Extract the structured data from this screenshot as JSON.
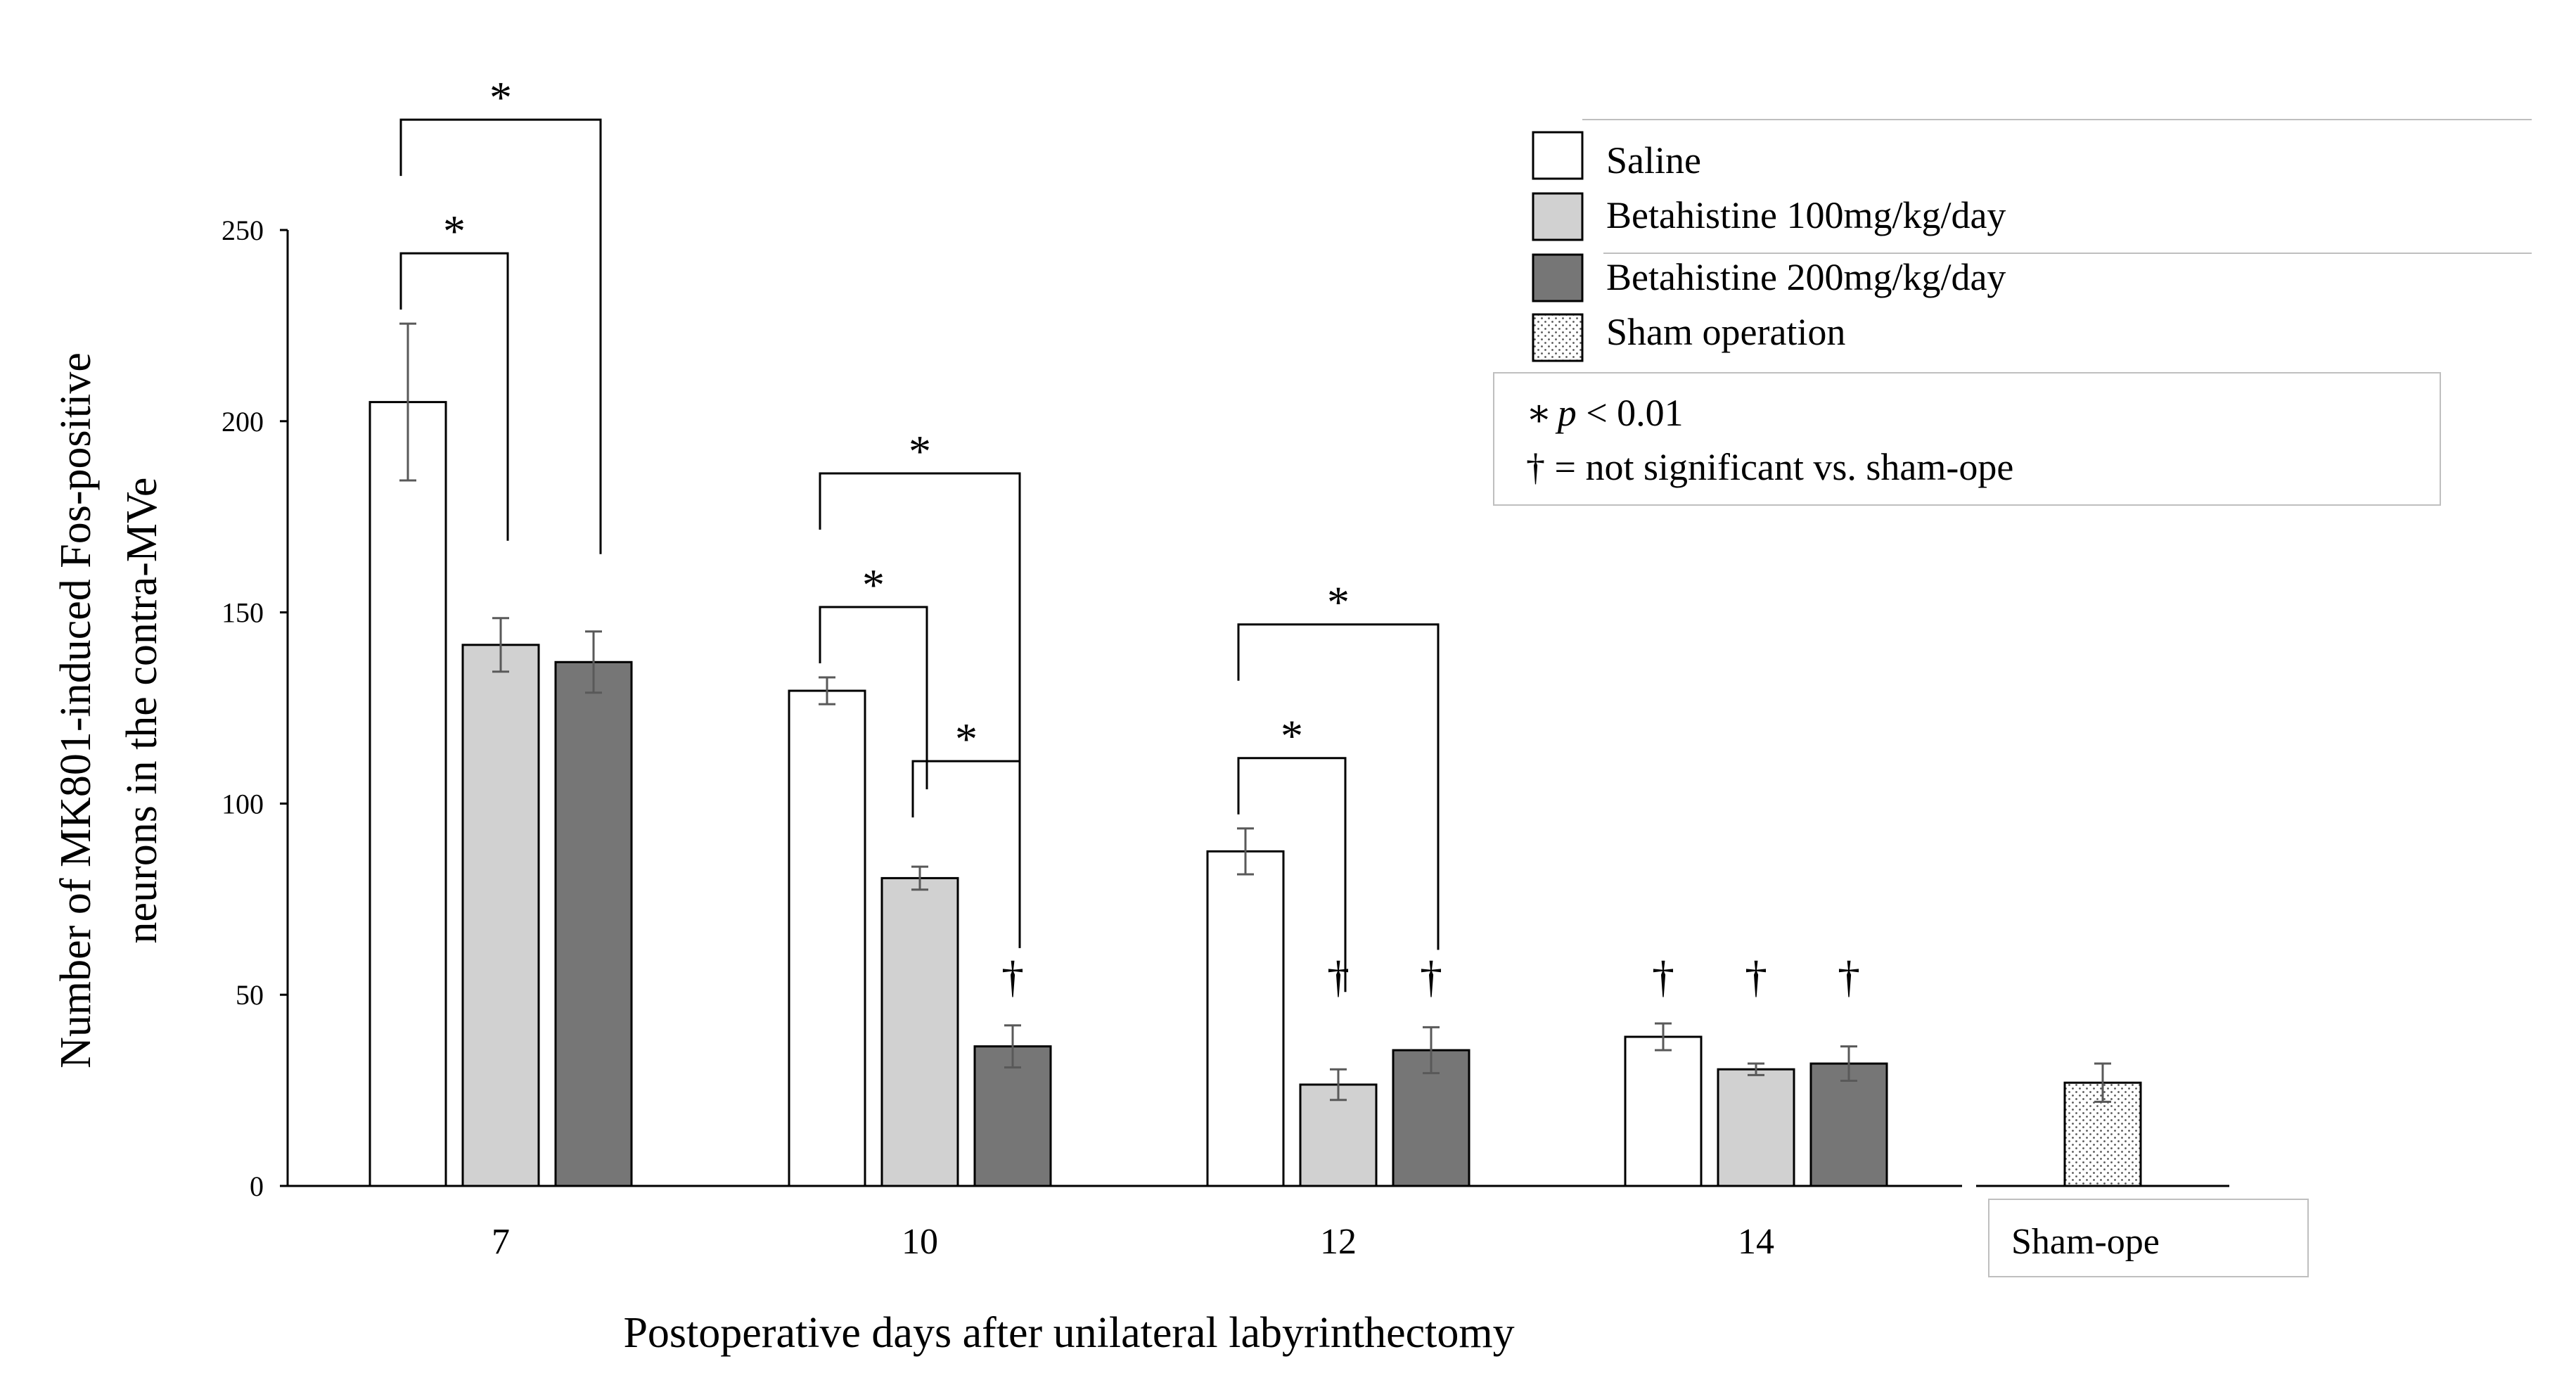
{
  "chart_data": {
    "type": "bar",
    "title": "",
    "xlabel": "Postoperative days after unilateral labyrinthectomy",
    "ylabel_lines": [
      "Number of MK801-induced Fos-positive",
      "neurons in the contra-MVe"
    ],
    "ylim": [
      0,
      250
    ],
    "yticks": [
      0,
      50,
      100,
      150,
      200,
      250
    ],
    "categories": [
      "7",
      "10",
      "12",
      "14"
    ],
    "series": [
      {
        "name": "Saline",
        "color": "#ffffff",
        "values": [
          205,
          129.5,
          87.5,
          39
        ],
        "errors": [
          20.5,
          3.5,
          6,
          3.5
        ]
      },
      {
        "name": "Betahistine 100mg/kg/day",
        "color": "#d1d1d1",
        "values": [
          141.5,
          80.5,
          26.5,
          30.5
        ],
        "errors": [
          7,
          3,
          4,
          1.5
        ]
      },
      {
        "name": "Betahistine 200mg/kg/day",
        "color": "#767676",
        "values": [
          137,
          36.5,
          35.5,
          32
        ],
        "errors": [
          8,
          5.5,
          6,
          4.5
        ]
      }
    ],
    "sham": {
      "name": "Sham operation",
      "label": "Sham-ope",
      "value": 27,
      "error": 5,
      "pattern": "dotted"
    },
    "significance_brackets": [
      {
        "group": 0,
        "from_series": 0,
        "to_series": 2,
        "symbol": "*"
      },
      {
        "group": 0,
        "from_series": 0,
        "to_series": 1,
        "symbol": "*"
      },
      {
        "group": 1,
        "from_series": 0,
        "to_series": 2,
        "symbol": "*"
      },
      {
        "group": 1,
        "from_series": 0,
        "to_series": 1,
        "symbol": "*"
      },
      {
        "group": 1,
        "from_series": 1,
        "to_series": 2,
        "symbol": "*"
      },
      {
        "group": 2,
        "from_series": 0,
        "to_series": 2,
        "symbol": "*"
      },
      {
        "group": 2,
        "from_series": 0,
        "to_series": 1,
        "symbol": "*"
      }
    ],
    "not_significant_marks": [
      {
        "group": 1,
        "series": 2,
        "symbol": "†"
      },
      {
        "group": 2,
        "series": 1,
        "symbol": "†"
      },
      {
        "group": 2,
        "series": 2,
        "symbol": "†"
      },
      {
        "group": 3,
        "series": 0,
        "symbol": "†"
      },
      {
        "group": 3,
        "series": 1,
        "symbol": "†"
      },
      {
        "group": 3,
        "series": 2,
        "symbol": "†"
      }
    ],
    "notes": {
      "p_symbol": "∗",
      "p_italic": "p",
      "p_rest": " < 0.01",
      "dagger_line": "† = not significant vs. sham-ope"
    },
    "colors": {
      "axis": "#000000",
      "error_bar": "#595959",
      "sham_fill": "#ffffff",
      "sham_dot": "#555555"
    }
  }
}
